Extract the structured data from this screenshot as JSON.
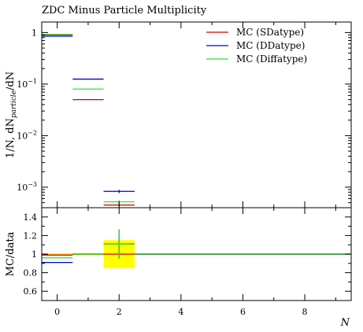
{
  "chart_data": [
    {
      "type": "line",
      "title": "ZDC Minus Particle Multiplicity",
      "ylabel_parts": [
        "1/N, dN",
        "particle",
        "/dN"
      ],
      "yscale": "log",
      "xlim": [
        -0.5,
        9.5
      ],
      "ylim": [
        0.0004,
        1.6
      ],
      "ytick_labels": [
        {
          "value": 1,
          "base": "1",
          "exp": ""
        },
        {
          "value": 0.1,
          "base": "10",
          "exp": "−1"
        },
        {
          "value": 0.01,
          "base": "10",
          "exp": "−2"
        },
        {
          "value": 0.001,
          "base": "10",
          "exp": "−3"
        }
      ],
      "legend_position": "top-right",
      "series": [
        {
          "name": "MC (SDatype)",
          "color": "#cc0000",
          "points": [
            {
              "x": 0,
              "y": 0.9
            },
            {
              "x": 1,
              "y": 0.05
            },
            {
              "x": 2,
              "y": 0.00045,
              "err": 3e-05
            }
          ]
        },
        {
          "name": "MC (DDatype)",
          "color": "#0000cc",
          "points": [
            {
              "x": 0,
              "y": 0.85
            },
            {
              "x": 1,
              "y": 0.125
            },
            {
              "x": 2,
              "y": 0.00083,
              "err": 6e-05
            }
          ]
        },
        {
          "name": "MC (Diffatype)",
          "color": "#33dd33",
          "points": [
            {
              "x": 0,
              "y": 0.92
            },
            {
              "x": 1,
              "y": 0.08
            },
            {
              "x": 2,
              "y": 0.00052,
              "err": 4e-05
            }
          ]
        }
      ]
    },
    {
      "type": "line",
      "ylabel": "MC/data",
      "xlabel": "N",
      "xlim": [
        -0.5,
        9.5
      ],
      "ylim": [
        0.5,
        1.5
      ],
      "yticks": [
        0.6,
        0.8,
        1,
        1.2,
        1.4
      ],
      "ytick_labels": [
        "0.6",
        "0.8",
        "1",
        "1.2",
        "1.4"
      ],
      "xticks": [
        0,
        2,
        4,
        6,
        8
      ],
      "xtick_labels": [
        "0",
        "2",
        "4",
        "6",
        "8"
      ],
      "reference_band": {
        "color": "#ffff00",
        "bins": [
          {
            "x": 0,
            "low": 0.99,
            "high": 1.01
          },
          {
            "x": 1,
            "low": 0.99,
            "high": 1.01
          },
          {
            "x": 2,
            "low": 0.85,
            "high": 1.15
          }
        ]
      },
      "series": [
        {
          "name": "MC (SDatype)",
          "color": "#cc0000",
          "points": [
            {
              "x": 0,
              "y": 0.99
            },
            {
              "x": 1,
              "y": 1.0
            },
            {
              "x": 2,
              "y": 1.0,
              "err": 0.0
            }
          ]
        },
        {
          "name": "MC (DDatype)",
          "color": "#0000cc",
          "points": [
            {
              "x": 0,
              "y": 0.91
            },
            {
              "x": 1,
              "y": 1.0
            },
            {
              "x": 2,
              "y": 1.11,
              "err": 0.15
            }
          ]
        },
        {
          "name": "MC (Diffatype)",
          "color": "#33dd33",
          "points": [
            {
              "x": 0,
              "y": 0.96
            },
            {
              "x": 1,
              "y": 1.0
            },
            {
              "x": 2,
              "y": 1.11,
              "err": 0.16
            }
          ]
        }
      ]
    }
  ]
}
